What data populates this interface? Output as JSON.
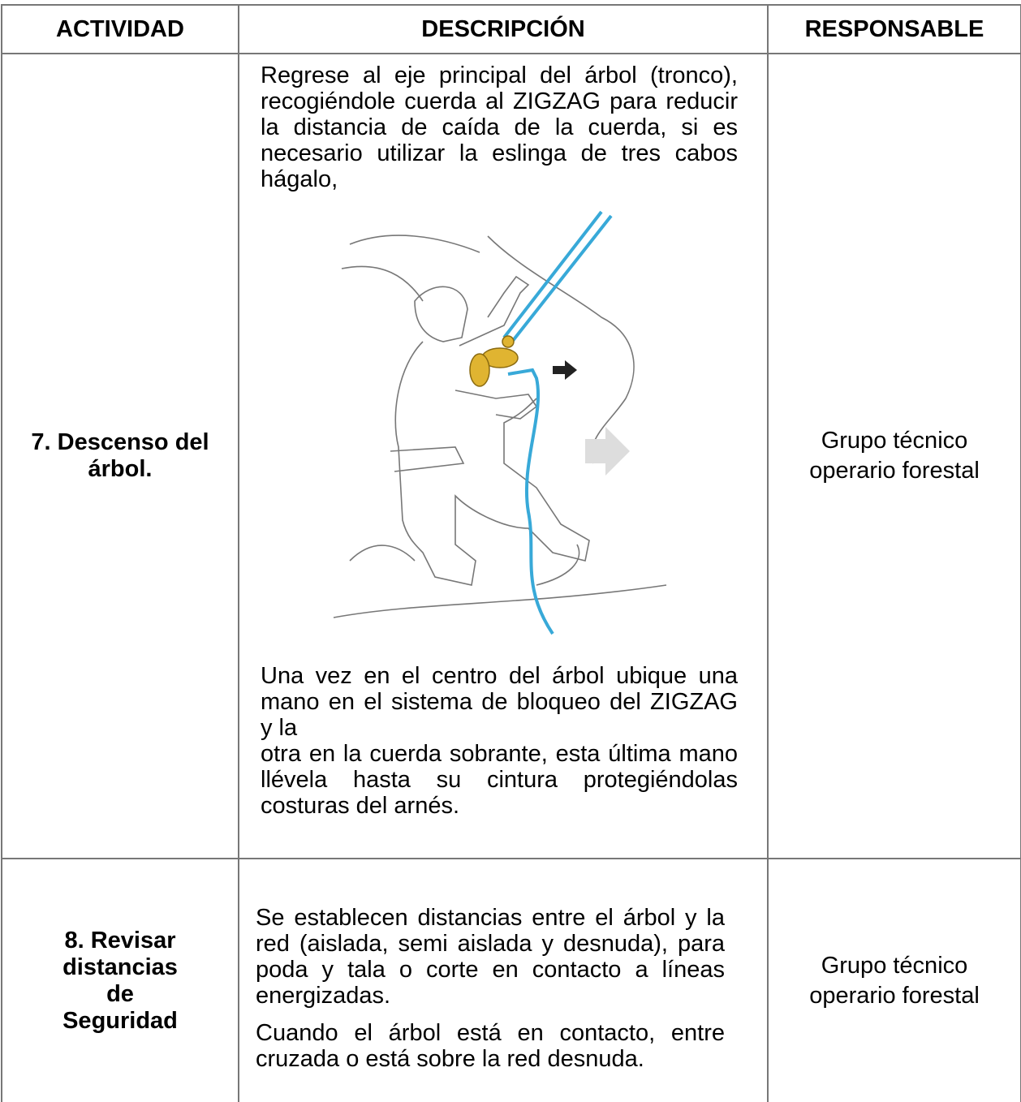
{
  "table": {
    "header": [
      "ACTIVIDAD",
      "DESCRIPCIÓN",
      "RESPONSABLE"
    ],
    "rows": [
      {
        "activity": "7. Descenso del árbol.",
        "description": [
          "Regrese al eje principal del árbol (tronco), recogiéndole cuerda al ZIGZAG para reducir la distancia de caída de la cuerda, si es necesario utilizar la eslinga de tres cabos hágalo,",
          "Una vez en el centro del árbol ubique una mano en el sistema de bloqueo del ZIGZAG y la",
          "otra en la cuerda sobrante, esta última mano llévela hasta su cintura protegiéndolas costuras del arnés."
        ],
        "responsible": "Grupo técnico operario forestal"
      },
      {
        "activity": "8. Revisar distancias de Seguridad",
        "description": [
          "Se establecen distancias entre el árbol y la red (aislada, semi aislada y desnuda), para poda y tala o corte en contacto a líneas energizadas.",
          "Cuando el árbol está en contacto, entre cruzada o está sobre la red desnuda."
        ],
        "responsible": "Grupo técnico operario forestal"
      }
    ]
  }
}
